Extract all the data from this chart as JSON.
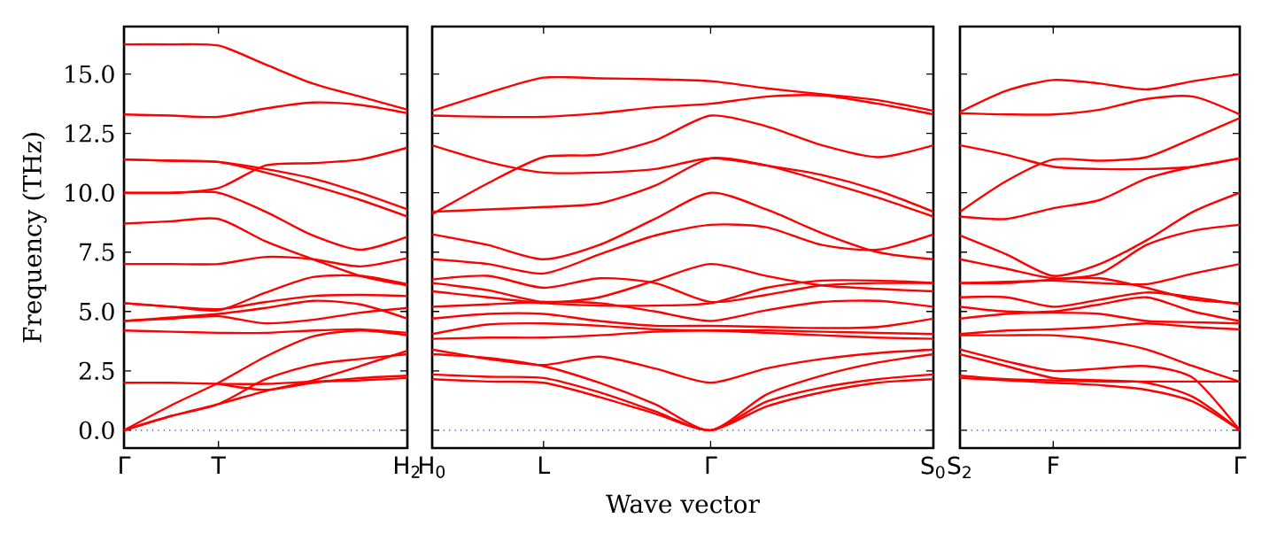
{
  "chart_data": [
    {
      "type": "line",
      "color": "#ff0000",
      "ylabel": "Frequency (THz)",
      "ylim": [
        -0.75,
        17
      ],
      "yticks": [
        {
          "value": 0,
          "label": "0.0"
        },
        {
          "value": 2.5,
          "label": "2.5"
        },
        {
          "value": 5,
          "label": "5.0"
        },
        {
          "value": 7.5,
          "label": "7.5"
        },
        {
          "value": 10,
          "label": "10.0"
        },
        {
          "value": 12.5,
          "label": "12.5"
        },
        {
          "value": 15,
          "label": "15.0"
        }
      ],
      "categories": [
        "Γ",
        null,
        "T",
        null,
        null,
        null,
        "H$_{2}$"
      ],
      "ref_lines": [
        {
          "axis": "y",
          "value": 0,
          "color": "#0000ff",
          "line_style": "dotted"
        }
      ],
      "series": [
        {
          "values": [
            16.25,
            16.25,
            16.2,
            15.4,
            14.6,
            14.05,
            13.5
          ]
        },
        {
          "values": [
            13.3,
            13.25,
            13.2,
            13.55,
            13.8,
            13.7,
            13.35
          ]
        },
        {
          "values": [
            11.4,
            11.35,
            11.3,
            11.0,
            10.6,
            10.0,
            9.3
          ]
        },
        {
          "values": [
            11.4,
            11.35,
            11.3,
            10.85,
            10.3,
            9.7,
            9.0
          ]
        },
        {
          "values": [
            10.0,
            10.0,
            10.2,
            11.15,
            11.25,
            11.4,
            11.9
          ]
        },
        {
          "values": [
            10.0,
            10.0,
            10.0,
            9.2,
            8.2,
            7.6,
            8.15
          ]
        },
        {
          "values": [
            8.7,
            8.8,
            8.9,
            7.95,
            7.2,
            6.5,
            6.1
          ]
        },
        {
          "values": [
            7.0,
            7.0,
            7.0,
            7.3,
            7.2,
            6.9,
            7.25
          ]
        },
        {
          "values": [
            5.35,
            5.2,
            5.05,
            5.8,
            6.45,
            6.5,
            6.15
          ]
        },
        {
          "values": [
            5.35,
            5.2,
            5.1,
            5.4,
            5.65,
            5.7,
            5.65
          ]
        },
        {
          "values": [
            4.6,
            4.75,
            4.9,
            5.15,
            5.45,
            5.3,
            4.7
          ]
        },
        {
          "values": [
            4.6,
            4.7,
            4.8,
            4.5,
            4.65,
            4.95,
            5.15
          ]
        },
        {
          "values": [
            4.2,
            4.15,
            4.1,
            4.1,
            4.2,
            4.25,
            4.1
          ]
        },
        {
          "values": [
            0,
            1.05,
            2.0,
            3.1,
            3.95,
            4.2,
            4.0
          ]
        },
        {
          "values": [
            2.0,
            2.0,
            1.95,
            1.95,
            2.05,
            2.1,
            2.2
          ]
        },
        {
          "values": [
            0,
            0.6,
            1.1,
            2.15,
            2.75,
            3.0,
            3.2
          ]
        },
        {
          "values": [
            0,
            0.6,
            1.1,
            1.65,
            2.1,
            2.7,
            3.35
          ]
        },
        {
          "values": [
            null,
            null,
            1.95,
            1.7,
            2.0,
            2.2,
            2.3
          ]
        }
      ]
    },
    {
      "type": "line",
      "color": "#ff0000",
      "xlabel": "Wave vector",
      "tick_labels": "x",
      "ylim": [
        -0.75,
        17
      ],
      "yticks": [
        {
          "value": 0,
          "label": null
        },
        {
          "value": 2.5,
          "label": null
        },
        {
          "value": 5,
          "label": null
        },
        {
          "value": 7.5,
          "label": null
        },
        {
          "value": 10,
          "label": null
        },
        {
          "value": 12.5,
          "label": null
        },
        {
          "value": 15,
          "label": null
        }
      ],
      "categories": [
        "H$_{0}$",
        null,
        "L",
        null,
        null,
        "Γ",
        null,
        null,
        null,
        "S$_{0}$"
      ],
      "ref_lines": [
        {
          "axis": "y",
          "value": 0,
          "color": "#0000ff",
          "line_style": "dotted"
        }
      ],
      "series": [
        {
          "values": [
            13.45,
            14.2,
            14.85,
            14.82,
            14.78,
            14.7,
            14.4,
            14.15,
            13.9,
            13.45
          ]
        },
        {
          "values": [
            13.25,
            13.2,
            13.2,
            13.35,
            13.6,
            13.75,
            14.05,
            14.1,
            13.75,
            13.3
          ]
        },
        {
          "values": [
            12.0,
            11.3,
            10.85,
            10.85,
            11.0,
            11.45,
            11.15,
            10.75,
            10.1,
            9.2
          ]
        },
        {
          "values": [
            9.1,
            10.4,
            11.5,
            11.6,
            12.2,
            13.25,
            12.8,
            12.0,
            11.5,
            12.0
          ]
        },
        {
          "values": [
            9.2,
            9.3,
            9.4,
            9.55,
            10.3,
            11.45,
            11.15,
            10.5,
            9.8,
            9.0
          ]
        },
        {
          "values": [
            8.25,
            7.8,
            7.2,
            7.8,
            8.9,
            10.0,
            9.3,
            8.3,
            7.5,
            7.2
          ]
        },
        {
          "values": [
            7.2,
            7.0,
            6.6,
            7.4,
            8.2,
            8.65,
            8.55,
            7.8,
            7.6,
            8.25
          ]
        },
        {
          "values": [
            6.35,
            6.5,
            6.0,
            6.4,
            6.2,
            5.4,
            5.7,
            6.1,
            6.2,
            6.2
          ]
        },
        {
          "values": [
            6.2,
            5.9,
            5.4,
            5.6,
            6.3,
            7.0,
            6.5,
            6.1,
            5.95,
            5.85
          ]
        },
        {
          "values": [
            5.85,
            5.6,
            5.35,
            5.25,
            5.25,
            5.35,
            6.0,
            6.3,
            6.3,
            6.2
          ]
        },
        {
          "values": [
            5.2,
            5.3,
            5.4,
            5.35,
            5.0,
            4.6,
            5.05,
            5.4,
            5.45,
            5.2
          ]
        },
        {
          "values": [
            4.7,
            4.9,
            4.9,
            4.6,
            4.4,
            4.4,
            4.35,
            4.3,
            4.35,
            4.7
          ]
        },
        {
          "values": [
            4.05,
            4.45,
            4.5,
            4.4,
            4.25,
            4.2,
            4.2,
            4.15,
            4.1,
            4.05
          ]
        },
        {
          "values": [
            3.85,
            3.9,
            3.9,
            4.0,
            4.15,
            4.2,
            4.1,
            4.0,
            3.9,
            3.85
          ]
        },
        {
          "values": [
            3.4,
            3.0,
            2.75,
            3.1,
            2.6,
            2.0,
            2.6,
            3.0,
            3.25,
            3.4
          ]
        },
        {
          "values": [
            3.2,
            3.05,
            2.7,
            2.0,
            1.1,
            0,
            1.5,
            2.3,
            2.85,
            3.2
          ]
        },
        {
          "values": [
            2.35,
            2.25,
            2.2,
            1.6,
            0.8,
            0,
            1.2,
            1.8,
            2.15,
            2.35
          ]
        },
        {
          "values": [
            2.15,
            2.05,
            2.0,
            1.4,
            0.7,
            0,
            1.0,
            1.6,
            2.0,
            2.15
          ]
        }
      ]
    },
    {
      "type": "line",
      "color": "#ff0000",
      "tick_labels": "x",
      "ylim": [
        -0.75,
        17
      ],
      "yticks": [
        {
          "value": 0,
          "label": null
        },
        {
          "value": 2.5,
          "label": null
        },
        {
          "value": 5,
          "label": null
        },
        {
          "value": 7.5,
          "label": null
        },
        {
          "value": 10,
          "label": null
        },
        {
          "value": 12.5,
          "label": null
        },
        {
          "value": 15,
          "label": null
        }
      ],
      "categories": [
        "S$_{2}$",
        null,
        "F",
        null,
        null,
        null,
        "Γ"
      ],
      "ref_lines": [
        {
          "axis": "y",
          "value": 0,
          "color": "#0000ff",
          "line_style": "dotted"
        }
      ],
      "series": [
        {
          "values": [
            13.4,
            14.3,
            14.75,
            14.6,
            14.35,
            14.7,
            15.0
          ]
        },
        {
          "values": [
            13.35,
            13.3,
            13.3,
            13.5,
            13.95,
            14.05,
            13.3
          ]
        },
        {
          "values": [
            12.0,
            11.6,
            11.1,
            11.0,
            11.0,
            11.1,
            11.45
          ]
        },
        {
          "values": [
            9.2,
            10.5,
            11.4,
            11.35,
            11.5,
            12.3,
            13.15
          ]
        },
        {
          "values": [
            9.0,
            8.9,
            9.35,
            9.7,
            10.6,
            11.1,
            11.45
          ]
        },
        {
          "values": [
            8.2,
            7.4,
            6.5,
            7.0,
            8.0,
            9.2,
            10.0
          ]
        },
        {
          "values": [
            7.2,
            6.8,
            6.4,
            6.6,
            7.8,
            8.4,
            8.65
          ]
        },
        {
          "values": [
            6.2,
            6.2,
            6.35,
            6.4,
            6.0,
            5.5,
            5.35
          ]
        },
        {
          "values": [
            6.2,
            6.25,
            6.3,
            6.2,
            6.15,
            6.6,
            7.0
          ]
        },
        {
          "values": [
            5.6,
            5.6,
            5.2,
            5.5,
            5.8,
            5.6,
            5.3
          ]
        },
        {
          "values": [
            5.2,
            5.0,
            5.0,
            5.3,
            5.6,
            5.0,
            4.6
          ]
        },
        {
          "values": [
            4.7,
            4.9,
            4.95,
            4.9,
            4.6,
            4.55,
            4.5
          ]
        },
        {
          "values": [
            4.05,
            4.2,
            4.25,
            4.35,
            4.5,
            4.35,
            4.25
          ]
        },
        {
          "values": [
            4.0,
            4.0,
            4.0,
            3.8,
            3.4,
            2.7,
            2.05
          ]
        },
        {
          "values": [
            2.3,
            2.15,
            2.1,
            2.05,
            2.05,
            2.05,
            2.05
          ]
        },
        {
          "values": [
            3.4,
            2.9,
            2.5,
            2.6,
            2.7,
            2.2,
            0
          ]
        },
        {
          "values": [
            3.2,
            2.7,
            2.2,
            2.1,
            2.0,
            1.4,
            0
          ]
        },
        {
          "values": [
            2.2,
            2.1,
            2.0,
            1.9,
            1.7,
            1.2,
            0
          ]
        }
      ]
    }
  ]
}
